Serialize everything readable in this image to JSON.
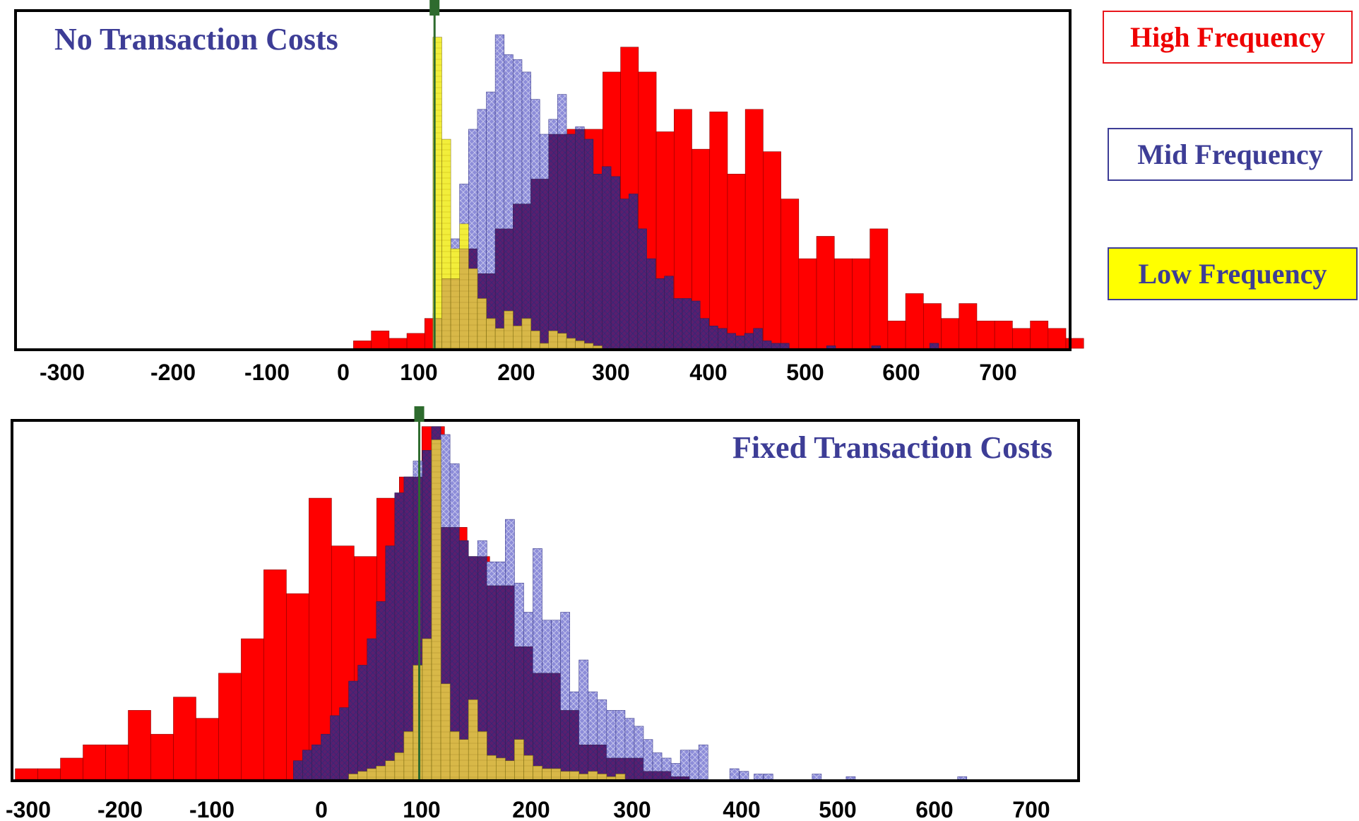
{
  "legend": {
    "high": "High Frequency",
    "mid": "Mid Frequency",
    "low": "Low Frequency"
  },
  "colors": {
    "high": "#ff0000",
    "mid": "#8d8dd9",
    "low": "#f2ee3a",
    "overlap": "#5a1e6e",
    "marker": "#2e6b2e",
    "title": "#3d3d96"
  },
  "chart_data": [
    {
      "type": "bar",
      "title": "No Transaction Costs",
      "xlabel": "",
      "ylabel": "",
      "xlim": [
        -350,
        775
      ],
      "ylim": [
        0,
        130
      ],
      "x_ticks": [
        -300,
        -200,
        -100,
        0,
        100,
        200,
        300,
        400,
        500,
        600,
        700
      ],
      "grid": false,
      "marker_x": 97,
      "series": [
        {
          "name": "High Frequency",
          "bin_width": 19,
          "bins": [
            {
              "x": 20,
              "y": 3
            },
            {
              "x": 39,
              "y": 7
            },
            {
              "x": 58,
              "y": 4
            },
            {
              "x": 77,
              "y": 6
            },
            {
              "x": 96,
              "y": 12
            },
            {
              "x": 115,
              "y": 28
            },
            {
              "x": 134,
              "y": 40
            },
            {
              "x": 153,
              "y": 30
            },
            {
              "x": 172,
              "y": 48
            },
            {
              "x": 191,
              "y": 58
            },
            {
              "x": 210,
              "y": 68
            },
            {
              "x": 229,
              "y": 86
            },
            {
              "x": 248,
              "y": 88
            },
            {
              "x": 267,
              "y": 88
            },
            {
              "x": 286,
              "y": 111
            },
            {
              "x": 305,
              "y": 121
            },
            {
              "x": 324,
              "y": 111
            },
            {
              "x": 343,
              "y": 87
            },
            {
              "x": 362,
              "y": 96
            },
            {
              "x": 381,
              "y": 80
            },
            {
              "x": 400,
              "y": 95
            },
            {
              "x": 419,
              "y": 70
            },
            {
              "x": 438,
              "y": 96
            },
            {
              "x": 457,
              "y": 79
            },
            {
              "x": 476,
              "y": 60
            },
            {
              "x": 495,
              "y": 36
            },
            {
              "x": 514,
              "y": 45
            },
            {
              "x": 533,
              "y": 36
            },
            {
              "x": 552,
              "y": 36
            },
            {
              "x": 571,
              "y": 48
            },
            {
              "x": 590,
              "y": 11
            },
            {
              "x": 609,
              "y": 22
            },
            {
              "x": 628,
              "y": 18
            },
            {
              "x": 647,
              "y": 12
            },
            {
              "x": 666,
              "y": 18
            },
            {
              "x": 685,
              "y": 11
            },
            {
              "x": 704,
              "y": 11
            },
            {
              "x": 723,
              "y": 8
            },
            {
              "x": 742,
              "y": 11
            },
            {
              "x": 761,
              "y": 8
            },
            {
              "x": 780,
              "y": 4
            }
          ]
        },
        {
          "name": "Mid Frequency",
          "bin_width": 9.5,
          "bins": [
            {
              "x": 100,
              "y": 14
            },
            {
              "x": 109.5,
              "y": 40
            },
            {
              "x": 119,
              "y": 44
            },
            {
              "x": 128.5,
              "y": 66
            },
            {
              "x": 138,
              "y": 88
            },
            {
              "x": 147.5,
              "y": 96
            },
            {
              "x": 157,
              "y": 103
            },
            {
              "x": 166.5,
              "y": 126
            },
            {
              "x": 176,
              "y": 118
            },
            {
              "x": 185.5,
              "y": 116
            },
            {
              "x": 195,
              "y": 111
            },
            {
              "x": 204.5,
              "y": 100
            },
            {
              "x": 214,
              "y": 86
            },
            {
              "x": 223.5,
              "y": 92
            },
            {
              "x": 233,
              "y": 102
            },
            {
              "x": 242.5,
              "y": 86
            },
            {
              "x": 252,
              "y": 89
            },
            {
              "x": 261.5,
              "y": 84
            },
            {
              "x": 271,
              "y": 70
            },
            {
              "x": 280.5,
              "y": 73
            },
            {
              "x": 290,
              "y": 69
            },
            {
              "x": 299.5,
              "y": 60
            },
            {
              "x": 309,
              "y": 62
            },
            {
              "x": 318.5,
              "y": 48
            },
            {
              "x": 328,
              "y": 36
            },
            {
              "x": 337.5,
              "y": 28
            },
            {
              "x": 347,
              "y": 29
            },
            {
              "x": 356.5,
              "y": 20
            },
            {
              "x": 366,
              "y": 20
            },
            {
              "x": 375.5,
              "y": 19
            },
            {
              "x": 385,
              "y": 12
            },
            {
              "x": 394.5,
              "y": 9
            },
            {
              "x": 404,
              "y": 8
            },
            {
              "x": 413.5,
              "y": 6
            },
            {
              "x": 423,
              "y": 5
            },
            {
              "x": 432.5,
              "y": 6
            },
            {
              "x": 442,
              "y": 8
            },
            {
              "x": 451.5,
              "y": 3
            },
            {
              "x": 461,
              "y": 2
            },
            {
              "x": 470.5,
              "y": 2
            },
            {
              "x": 520,
              "y": 1
            },
            {
              "x": 568,
              "y": 1
            },
            {
              "x": 630,
              "y": 2
            }
          ]
        },
        {
          "name": "Low Frequency",
          "bin_width": 9.5,
          "bins": [
            {
              "x": 100,
              "y": 125
            },
            {
              "x": 109.5,
              "y": 84
            },
            {
              "x": 119,
              "y": 40
            },
            {
              "x": 128.5,
              "y": 50
            },
            {
              "x": 138,
              "y": 32
            },
            {
              "x": 147.5,
              "y": 20
            },
            {
              "x": 157,
              "y": 12
            },
            {
              "x": 166.5,
              "y": 8
            },
            {
              "x": 176,
              "y": 15
            },
            {
              "x": 185.5,
              "y": 9
            },
            {
              "x": 195,
              "y": 12
            },
            {
              "x": 204.5,
              "y": 7
            },
            {
              "x": 214,
              "y": 2
            },
            {
              "x": 223.5,
              "y": 7
            },
            {
              "x": 233,
              "y": 6
            },
            {
              "x": 242.5,
              "y": 4
            },
            {
              "x": 252,
              "y": 3
            },
            {
              "x": 261.5,
              "y": 2
            },
            {
              "x": 271,
              "y": 1
            }
          ]
        }
      ]
    },
    {
      "type": "bar",
      "title": "Fixed Transaction Costs",
      "xlabel": "",
      "ylabel": "",
      "xlim": [
        -325,
        775
      ],
      "ylim": [
        0,
        130
      ],
      "x_ticks": [
        -300,
        -200,
        -100,
        0,
        100,
        200,
        300,
        400,
        500,
        600,
        700
      ],
      "grid": false,
      "marker_x": 95,
      "series": [
        {
          "name": "High Frequency",
          "bin_width": 23.3,
          "bins": [
            {
              "x": -310,
              "y": 4
            },
            {
              "x": -286.7,
              "y": 4
            },
            {
              "x": -263.4,
              "y": 8
            },
            {
              "x": -240.1,
              "y": 13
            },
            {
              "x": -216.8,
              "y": 13
            },
            {
              "x": -193.5,
              "y": 26
            },
            {
              "x": -170.2,
              "y": 17
            },
            {
              "x": -146.9,
              "y": 31
            },
            {
              "x": -123.6,
              "y": 23
            },
            {
              "x": -100.3,
              "y": 40
            },
            {
              "x": -77,
              "y": 53
            },
            {
              "x": -53.7,
              "y": 79
            },
            {
              "x": -30.4,
              "y": 70
            },
            {
              "x": -7.1,
              "y": 106
            },
            {
              "x": 16.2,
              "y": 88
            },
            {
              "x": 39.5,
              "y": 84
            },
            {
              "x": 62.8,
              "y": 106
            },
            {
              "x": 86.1,
              "y": 114
            },
            {
              "x": 109.4,
              "y": 133
            },
            {
              "x": 132.7,
              "y": 95
            },
            {
              "x": 156,
              "y": 84
            },
            {
              "x": 179.3,
              "y": 73
            },
            {
              "x": 202.6,
              "y": 50
            },
            {
              "x": 225.9,
              "y": 40
            },
            {
              "x": 249.2,
              "y": 26
            },
            {
              "x": 272.5,
              "y": 13
            },
            {
              "x": 295.8,
              "y": 8
            },
            {
              "x": 319.1,
              "y": 8
            },
            {
              "x": 342.4,
              "y": 3
            },
            {
              "x": 365.7,
              "y": 1
            }
          ]
        },
        {
          "name": "Mid Frequency",
          "bin_width": 9.5,
          "bins": [
            {
              "x": -30,
              "y": 7
            },
            {
              "x": -20.5,
              "y": 11
            },
            {
              "x": -11,
              "y": 13
            },
            {
              "x": -1.5,
              "y": 17
            },
            {
              "x": 8,
              "y": 24
            },
            {
              "x": 17.5,
              "y": 27
            },
            {
              "x": 27,
              "y": 37
            },
            {
              "x": 36.5,
              "y": 43
            },
            {
              "x": 46,
              "y": 53
            },
            {
              "x": 55.5,
              "y": 67
            },
            {
              "x": 65,
              "y": 88
            },
            {
              "x": 74.5,
              "y": 108
            },
            {
              "x": 84,
              "y": 114
            },
            {
              "x": 93.5,
              "y": 120
            },
            {
              "x": 103,
              "y": 124
            },
            {
              "x": 112.5,
              "y": 133
            },
            {
              "x": 122,
              "y": 130
            },
            {
              "x": 131.5,
              "y": 119
            },
            {
              "x": 141,
              "y": 90
            },
            {
              "x": 150.5,
              "y": 84
            },
            {
              "x": 160,
              "y": 90
            },
            {
              "x": 169.5,
              "y": 82
            },
            {
              "x": 179,
              "y": 82
            },
            {
              "x": 188.5,
              "y": 98
            },
            {
              "x": 198,
              "y": 74
            },
            {
              "x": 207.5,
              "y": 63
            },
            {
              "x": 217,
              "y": 87
            },
            {
              "x": 226.5,
              "y": 60
            },
            {
              "x": 236,
              "y": 60
            },
            {
              "x": 245.5,
              "y": 63
            },
            {
              "x": 255,
              "y": 33
            },
            {
              "x": 264.5,
              "y": 45
            },
            {
              "x": 274,
              "y": 33
            },
            {
              "x": 283.5,
              "y": 30
            },
            {
              "x": 293,
              "y": 26
            },
            {
              "x": 302.5,
              "y": 26
            },
            {
              "x": 312,
              "y": 23
            },
            {
              "x": 321.5,
              "y": 20
            },
            {
              "x": 331,
              "y": 15
            },
            {
              "x": 340.5,
              "y": 10
            },
            {
              "x": 350,
              "y": 8
            },
            {
              "x": 359.5,
              "y": 6
            },
            {
              "x": 369,
              "y": 11
            },
            {
              "x": 378.5,
              "y": 11
            },
            {
              "x": 388,
              "y": 13
            },
            {
              "x": 420,
              "y": 4
            },
            {
              "x": 430,
              "y": 3
            },
            {
              "x": 445,
              "y": 2
            },
            {
              "x": 455,
              "y": 2
            },
            {
              "x": 505,
              "y": 2
            },
            {
              "x": 540,
              "y": 1
            },
            {
              "x": 655,
              "y": 1
            }
          ]
        },
        {
          "name": "Low Frequency",
          "bin_width": 9.5,
          "bins": [
            {
              "x": 27,
              "y": 2
            },
            {
              "x": 36.5,
              "y": 3
            },
            {
              "x": 46,
              "y": 4
            },
            {
              "x": 55.5,
              "y": 5
            },
            {
              "x": 65,
              "y": 7
            },
            {
              "x": 74.5,
              "y": 10
            },
            {
              "x": 84,
              "y": 18
            },
            {
              "x": 93.5,
              "y": 43
            },
            {
              "x": 103,
              "y": 53
            },
            {
              "x": 112.5,
              "y": 128
            },
            {
              "x": 122,
              "y": 36
            },
            {
              "x": 131.5,
              "y": 18
            },
            {
              "x": 141,
              "y": 15
            },
            {
              "x": 150.5,
              "y": 30
            },
            {
              "x": 160,
              "y": 18
            },
            {
              "x": 169.5,
              "y": 9
            },
            {
              "x": 179,
              "y": 8
            },
            {
              "x": 188.5,
              "y": 7
            },
            {
              "x": 198,
              "y": 15
            },
            {
              "x": 207.5,
              "y": 9
            },
            {
              "x": 217,
              "y": 5
            },
            {
              "x": 226.5,
              "y": 4
            },
            {
              "x": 236,
              "y": 4
            },
            {
              "x": 245.5,
              "y": 3
            },
            {
              "x": 255,
              "y": 3
            },
            {
              "x": 264.5,
              "y": 2
            },
            {
              "x": 274,
              "y": 3
            },
            {
              "x": 283.5,
              "y": 2
            },
            {
              "x": 293,
              "y": 1
            },
            {
              "x": 302.5,
              "y": 2
            }
          ]
        }
      ]
    }
  ]
}
